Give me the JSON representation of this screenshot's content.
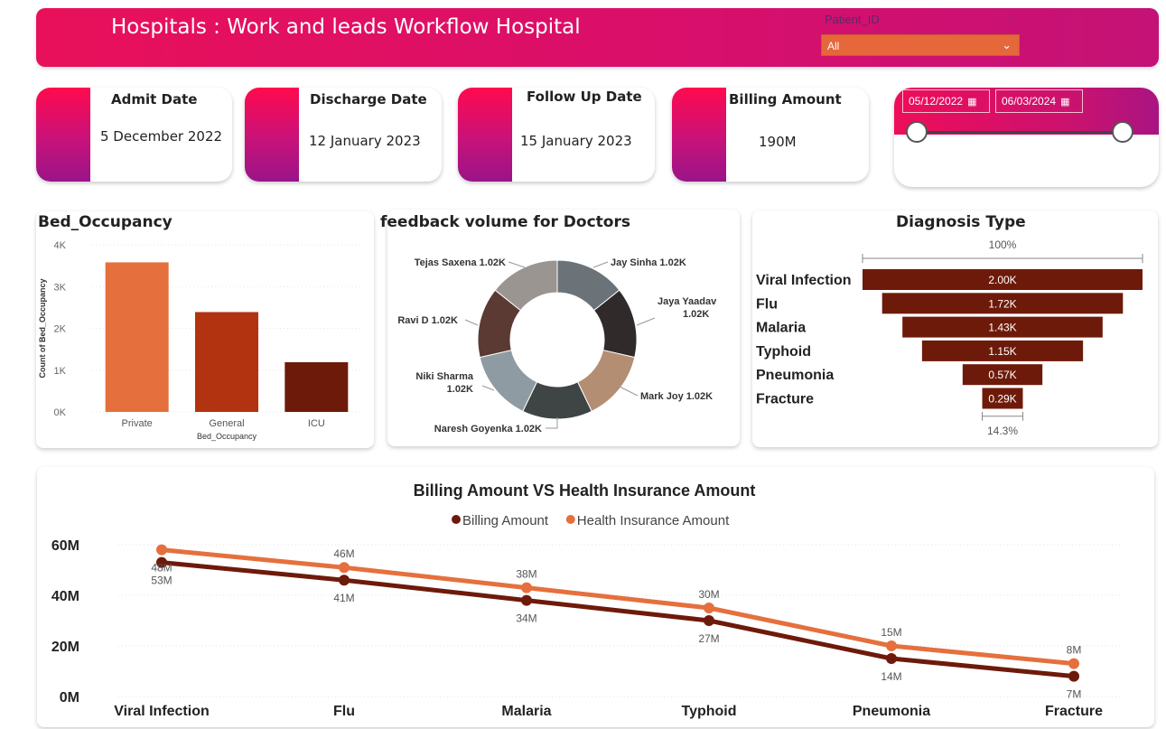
{
  "header": {
    "title": "Hospitals : Work and leads Workflow Hospital",
    "slicer_label": "Patient_ID",
    "slicer_value": "All"
  },
  "kpis": {
    "admit": {
      "title": "Admit Date",
      "value": "5 December 2022"
    },
    "discharge": {
      "title": "Discharge Date",
      "value": "12 January 2023"
    },
    "followup": {
      "title": "Follow Up Date",
      "value": "15 January 2023"
    },
    "billing": {
      "title": "Billing Amount",
      "value": "190M"
    }
  },
  "date_range": {
    "start": "05/12/2022",
    "end": "06/03/2024"
  },
  "colors": {
    "accent_pink": "#e8105a",
    "orange": "#e5673a",
    "rust": "#b2330f",
    "dark_brown": "#6e1a0a"
  },
  "chart_data": [
    {
      "type": "bar",
      "title": "Bed_Occupancy",
      "xlabel": "Bed_Occupancy",
      "ylabel": "Count of Bed_Occupancy",
      "categories": [
        "Private",
        "General",
        "ICU"
      ],
      "values": [
        3580,
        2390,
        1190
      ],
      "colors": [
        "#e5703d",
        "#b2330f",
        "#6e1a0a"
      ],
      "ylim": [
        0,
        4000
      ],
      "yticks": [
        "0K",
        "1K",
        "2K",
        "3K",
        "4K"
      ]
    },
    {
      "type": "pie",
      "title": "feedback volume for Doctors",
      "slices": [
        {
          "name": "Jay Sinha",
          "value": 1.02,
          "label": "Jay Sinha 1.02K",
          "color": "#6b7379"
        },
        {
          "name": "Jaya Yaadav",
          "value": 1.02,
          "label": "Jaya Yaadav 1.02K",
          "color": "#302a2a"
        },
        {
          "name": "Mark Joy",
          "value": 1.02,
          "label": "Mark Joy 1.02K",
          "color": "#b48e73"
        },
        {
          "name": "Naresh Goyenka",
          "value": 1.02,
          "label": "Naresh Goyenka 1.02K",
          "color": "#3f4445"
        },
        {
          "name": "Niki Sharma",
          "value": 1.02,
          "label": "Niki Sharma 1.02K",
          "color": "#8f9ba2"
        },
        {
          "name": "Ravi D",
          "value": 1.02,
          "label": "Ravi D 1.02K",
          "color": "#5a3a33"
        },
        {
          "name": "Tejas Saxena",
          "value": 1.02,
          "label": "Tejas Saxena 1.02K",
          "color": "#9a9591"
        }
      ]
    },
    {
      "type": "funnel",
      "title": "Diagnosis Type",
      "top_pct": "100%",
      "bottom_pct": "14.3%",
      "categories": [
        "Viral Infection",
        "Flu",
        "Malaria",
        "Typhoid",
        "Pneumonia",
        "Fracture"
      ],
      "values": [
        2000,
        1720,
        1430,
        1150,
        570,
        290
      ],
      "labels": [
        "2.00K",
        "1.72K",
        "1.43K",
        "1.15K",
        "0.57K",
        "0.29K"
      ],
      "color": "#6e1a0a"
    },
    {
      "type": "line",
      "title": "Billing Amount VS Health Insurance Amount",
      "categories": [
        "Viral Infection",
        "Flu",
        "Malaria",
        "Typhoid",
        "Pneumonia",
        "Fracture"
      ],
      "series": [
        {
          "name": "Billing Amount",
          "values": [
            53,
            46,
            38,
            30,
            15,
            8
          ],
          "labels": [
            "53M",
            "46M",
            "38M",
            "30M",
            "15M",
            "8M"
          ],
          "color": "#6e1a0a"
        },
        {
          "name": "Health Insurance Amount",
          "values": [
            48,
            41,
            34,
            27,
            14,
            7
          ],
          "labels": [
            "48M",
            "41M",
            "34M",
            "27M",
            "14M",
            "7M"
          ],
          "color": "#e5703d"
        }
      ],
      "ylim": [
        0,
        60
      ],
      "yticks": [
        "0M",
        "20M",
        "40M",
        "60M"
      ]
    }
  ]
}
